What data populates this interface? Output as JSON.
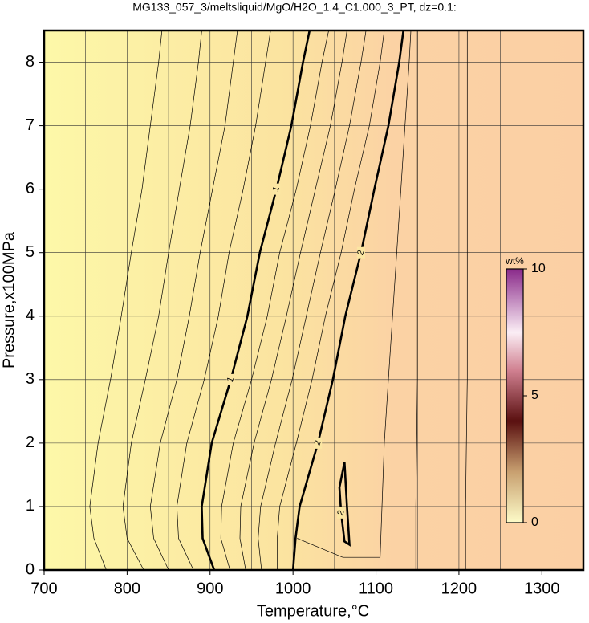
{
  "chart_data": {
    "type": "contour",
    "title": "MG133_057_3/meltsliquid/MgO/H2O_1.4_C1.000_3_PT, dz=0.1:",
    "x_label": "Temperature,°C",
    "y_label": "Pressure,x100MPa",
    "xlim": [
      700,
      1350
    ],
    "ylim": [
      0,
      8.5
    ],
    "xticks": [
      700,
      800,
      900,
      1000,
      1100,
      1200,
      1300
    ],
    "xminorticks": [
      750,
      850,
      950,
      1050,
      1150,
      1250
    ],
    "yticks": [
      0,
      1,
      2,
      3,
      4,
      5,
      6,
      7,
      8
    ],
    "grid": true,
    "colorbar": {
      "label": "wt%",
      "clim": [
        0,
        10
      ],
      "ticks": [
        0,
        5,
        10
      ]
    },
    "contours": [
      {
        "level": 0.2,
        "x": [
          775,
          760,
          755,
          765,
          780,
          793,
          805,
          818,
          828,
          838,
          842
        ],
        "y": [
          0,
          0.5,
          1,
          2,
          3,
          4,
          5,
          6,
          7,
          8,
          8.5
        ]
      },
      {
        "level": 0.4,
        "x": [
          820,
          800,
          795,
          805,
          822,
          838,
          850,
          863,
          876,
          886,
          890
        ],
        "y": [
          0,
          0.5,
          1,
          2,
          3,
          4,
          5,
          6,
          7,
          8,
          8.5
        ]
      },
      {
        "level": 0.6,
        "x": [
          850,
          832,
          828,
          840,
          860,
          875,
          888,
          903,
          918,
          928,
          933
        ],
        "y": [
          0,
          0.5,
          1,
          2,
          3,
          4,
          5,
          6,
          7,
          8,
          8.5
        ]
      },
      {
        "level": 0.8,
        "x": [
          880,
          862,
          860,
          872,
          893,
          910,
          923,
          940,
          955,
          967,
          973
        ],
        "y": [
          0,
          0.5,
          1,
          2,
          3,
          4,
          5,
          6,
          7,
          8,
          8.5
        ]
      },
      {
        "level": 1,
        "bold": true,
        "x": [
          905,
          891,
          890,
          902,
          925,
          945,
          960,
          980,
          998,
          1012,
          1020
        ],
        "y": [
          0,
          0.5,
          1,
          2,
          3,
          4,
          5,
          6,
          7,
          8,
          8.5
        ],
        "label_at": [
          4,
          7
        ]
      },
      {
        "level": 1.2,
        "x": [
          924,
          913,
          914,
          928,
          950,
          969,
          984,
          1004,
          1021,
          1035,
          1043
        ],
        "y": [
          0,
          0.5,
          1,
          2,
          3,
          4,
          5,
          6,
          7,
          8,
          8.5
        ]
      },
      {
        "level": 1.4,
        "x": [
          943,
          936,
          937,
          953,
          974,
          992,
          1009,
          1027,
          1045,
          1059,
          1065
        ],
        "y": [
          0,
          0.5,
          1,
          2,
          3,
          4,
          5,
          6,
          7,
          8,
          8.5
        ]
      },
      {
        "level": 1.6,
        "x": [
          962,
          958,
          961,
          979,
          999,
          1016,
          1033,
          1051,
          1068,
          1082,
          1088
        ],
        "y": [
          0,
          0.5,
          1,
          2,
          3,
          4,
          5,
          6,
          7,
          8,
          8.5
        ]
      },
      {
        "level": 1.8,
        "x": [
          981,
          981,
          984,
          1004,
          1023,
          1039,
          1058,
          1074,
          1092,
          1105,
          1110
        ],
        "y": [
          0,
          0.5,
          1,
          2,
          3,
          4,
          5,
          6,
          7,
          8,
          8.5
        ]
      },
      {
        "level": 2,
        "bold": true,
        "x": [
          1000,
          1003,
          1008,
          1030,
          1048,
          1063,
          1082,
          1098,
          1115,
          1128,
          1133
        ],
        "y": [
          0,
          0.5,
          1,
          2,
          3,
          4,
          5,
          6,
          7,
          8,
          8.5
        ],
        "label_at": [
          3,
          6
        ]
      },
      {
        "level": 2,
        "bold": true,
        "x": [
          1062,
          1065,
          1068,
          1062,
          1058,
          1056,
          1062
        ],
        "y": [
          1.7,
          1.0,
          0.4,
          0.45,
          0.9,
          1.3,
          1.7
        ],
        "label_at": [
          4
        ]
      },
      {
        "level": 2.2,
        "x": [
          1005,
          1060,
          1105,
          1110,
          1115,
          1120,
          1125,
          1130,
          1135,
          1140,
          1142
        ],
        "y": [
          0.5,
          0.2,
          0.2,
          2,
          3,
          4,
          5,
          6,
          7,
          8,
          8.5
        ]
      },
      {
        "level": 2.4,
        "x": [
          1148,
          1148,
          1148,
          1149,
          1150,
          1150,
          1150,
          1150,
          1150,
          1150,
          1150
        ],
        "y": [
          0,
          0.5,
          1,
          2,
          3,
          4,
          5,
          6,
          7,
          8,
          8.5
        ]
      },
      {
        "level": 2.6,
        "x": [
          1208,
          1208,
          1208,
          1209,
          1210,
          1210,
          1210,
          1210,
          1210,
          1210,
          1210
        ],
        "y": [
          0,
          0.5,
          1,
          2,
          3,
          4,
          5,
          6,
          7,
          8,
          8.5
        ]
      }
    ]
  }
}
